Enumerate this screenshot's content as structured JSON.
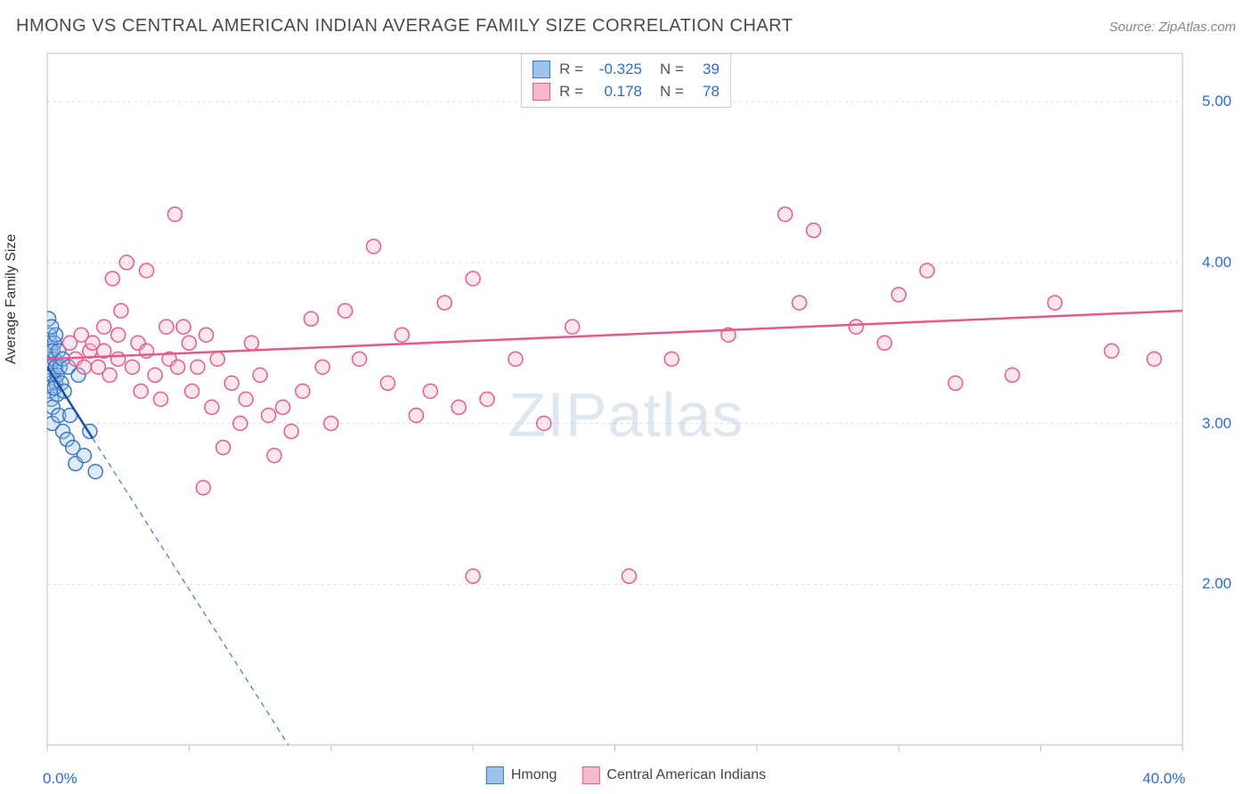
{
  "header": {
    "title": "HMONG VS CENTRAL AMERICAN INDIAN AVERAGE FAMILY SIZE CORRELATION CHART",
    "source": "Source: ZipAtlas.com"
  },
  "watermark": {
    "part1": "ZIP",
    "part2": "atlas"
  },
  "chart": {
    "type": "scatter",
    "background_color": "#ffffff",
    "grid_color": "#d9d9d9",
    "axis_color": "#bfbfbf",
    "tick_label_color": "#2b6cd4",
    "axis_label_color": "#333333",
    "ylabel": "Average Family Size",
    "label_fontsize": 16,
    "xlim": [
      0,
      40
    ],
    "ylim": [
      1.0,
      5.3
    ],
    "ytick_values": [
      2.0,
      3.0,
      4.0,
      5.0
    ],
    "ytick_labels": [
      "2.00",
      "3.00",
      "4.00",
      "5.00"
    ],
    "xtick_positions": [
      0,
      5,
      10,
      15,
      20,
      25,
      30,
      35,
      40
    ],
    "xlabel_min": "0.0%",
    "xlabel_max": "40.0%",
    "marker_radius": 8,
    "marker_stroke_width": 1.5,
    "marker_fill_opacity": 0.35,
    "series": [
      {
        "name": "Hmong",
        "color_stroke": "#3a77c4",
        "color_fill": "#9ec3ea",
        "R": "-0.325",
        "N": "39",
        "trend": {
          "x1": 0,
          "y1": 3.35,
          "x2": 8.5,
          "y2": 1.0,
          "solid_until_x": 1.6,
          "style": "solid-then-dashed",
          "width": 2
        },
        "points": [
          [
            0.05,
            3.65
          ],
          [
            0.08,
            3.55
          ],
          [
            0.1,
            3.5
          ],
          [
            0.12,
            3.45
          ],
          [
            0.1,
            3.4
          ],
          [
            0.1,
            3.35
          ],
          [
            0.15,
            3.3
          ],
          [
            0.15,
            3.25
          ],
          [
            0.1,
            3.2
          ],
          [
            0.15,
            3.15
          ],
          [
            0.2,
            3.1
          ],
          [
            0.18,
            3.0
          ],
          [
            0.2,
            3.3
          ],
          [
            0.25,
            3.4
          ],
          [
            0.25,
            3.5
          ],
          [
            0.3,
            3.35
          ],
          [
            0.2,
            3.45
          ],
          [
            0.3,
            3.25
          ],
          [
            0.35,
            3.3
          ],
          [
            0.3,
            3.55
          ],
          [
            0.4,
            3.45
          ],
          [
            0.35,
            3.18
          ],
          [
            0.15,
            3.6
          ],
          [
            0.25,
            3.22
          ],
          [
            0.4,
            3.05
          ],
          [
            0.45,
            3.35
          ],
          [
            0.5,
            3.25
          ],
          [
            0.55,
            3.4
          ],
          [
            0.55,
            2.95
          ],
          [
            0.6,
            3.2
          ],
          [
            0.7,
            2.9
          ],
          [
            0.75,
            3.35
          ],
          [
            0.8,
            3.05
          ],
          [
            0.9,
            2.85
          ],
          [
            1.0,
            2.75
          ],
          [
            1.1,
            3.3
          ],
          [
            1.3,
            2.8
          ],
          [
            1.5,
            2.95
          ],
          [
            1.7,
            2.7
          ]
        ]
      },
      {
        "name": "Central American Indians",
        "color_stroke": "#e55a8a",
        "color_fill": "#f5b8cf",
        "R": "0.178",
        "N": "78",
        "trend": {
          "x1": 0,
          "y1": 3.4,
          "x2": 40,
          "y2": 3.7,
          "style": "solid",
          "width": 2.5
        },
        "points": [
          [
            0.8,
            3.5
          ],
          [
            1.0,
            3.4
          ],
          [
            1.2,
            3.55
          ],
          [
            1.3,
            3.35
          ],
          [
            1.5,
            3.45
          ],
          [
            1.6,
            3.5
          ],
          [
            1.8,
            3.35
          ],
          [
            2.0,
            3.45
          ],
          [
            2.0,
            3.6
          ],
          [
            2.2,
            3.3
          ],
          [
            2.3,
            3.9
          ],
          [
            2.5,
            3.4
          ],
          [
            2.5,
            3.55
          ],
          [
            2.6,
            3.7
          ],
          [
            2.8,
            4.0
          ],
          [
            3.0,
            3.35
          ],
          [
            3.2,
            3.5
          ],
          [
            3.3,
            3.2
          ],
          [
            3.5,
            3.45
          ],
          [
            3.5,
            3.95
          ],
          [
            3.8,
            3.3
          ],
          [
            4.0,
            3.15
          ],
          [
            4.2,
            3.6
          ],
          [
            4.3,
            3.4
          ],
          [
            4.5,
            4.3
          ],
          [
            4.6,
            3.35
          ],
          [
            4.8,
            3.6
          ],
          [
            5.0,
            3.5
          ],
          [
            5.1,
            3.2
          ],
          [
            5.3,
            3.35
          ],
          [
            5.5,
            2.6
          ],
          [
            5.6,
            3.55
          ],
          [
            5.8,
            3.1
          ],
          [
            6.0,
            3.4
          ],
          [
            6.2,
            2.85
          ],
          [
            6.5,
            3.25
          ],
          [
            6.8,
            3.0
          ],
          [
            7.0,
            3.15
          ],
          [
            7.2,
            3.5
          ],
          [
            7.5,
            3.3
          ],
          [
            7.8,
            3.05
          ],
          [
            8.0,
            2.8
          ],
          [
            8.3,
            3.1
          ],
          [
            8.6,
            2.95
          ],
          [
            9.0,
            3.2
          ],
          [
            9.3,
            3.65
          ],
          [
            9.7,
            3.35
          ],
          [
            10.0,
            3.0
          ],
          [
            10.5,
            3.7
          ],
          [
            11.0,
            3.4
          ],
          [
            11.5,
            4.1
          ],
          [
            12.0,
            3.25
          ],
          [
            12.5,
            3.55
          ],
          [
            13.0,
            3.05
          ],
          [
            13.5,
            3.2
          ],
          [
            14.0,
            3.75
          ],
          [
            14.5,
            3.1
          ],
          [
            15.0,
            3.9
          ],
          [
            15.0,
            2.05
          ],
          [
            15.5,
            3.15
          ],
          [
            16.5,
            3.4
          ],
          [
            17.5,
            3.0
          ],
          [
            18.5,
            3.6
          ],
          [
            20.5,
            2.05
          ],
          [
            22.0,
            3.4
          ],
          [
            24.0,
            3.55
          ],
          [
            26.0,
            4.3
          ],
          [
            26.5,
            3.75
          ],
          [
            27.0,
            4.2
          ],
          [
            28.5,
            3.6
          ],
          [
            29.5,
            3.5
          ],
          [
            30.0,
            3.8
          ],
          [
            31.0,
            3.95
          ],
          [
            32.0,
            3.25
          ],
          [
            34.0,
            3.3
          ],
          [
            35.5,
            3.75
          ],
          [
            37.5,
            3.45
          ],
          [
            39.0,
            3.4
          ]
        ]
      }
    ]
  },
  "legend_stats": {
    "rows": [
      {
        "swatch_fill": "#9ec3ea",
        "swatch_stroke": "#3a77c4",
        "r_label": "R  =",
        "r_val": "-0.325",
        "n_label": "N  =",
        "n_val": "39"
      },
      {
        "swatch_fill": "#f5b8cf",
        "swatch_stroke": "#e55a8a",
        "r_label": "R  =",
        "r_val": "0.178",
        "n_label": "N  =",
        "n_val": "78"
      }
    ]
  },
  "bottom_legend": {
    "items": [
      {
        "swatch_fill": "#9ec3ea",
        "swatch_stroke": "#3a77c4",
        "label": "Hmong"
      },
      {
        "swatch_fill": "#f5b8cf",
        "swatch_stroke": "#e55a8a",
        "label": "Central American Indians"
      }
    ]
  }
}
